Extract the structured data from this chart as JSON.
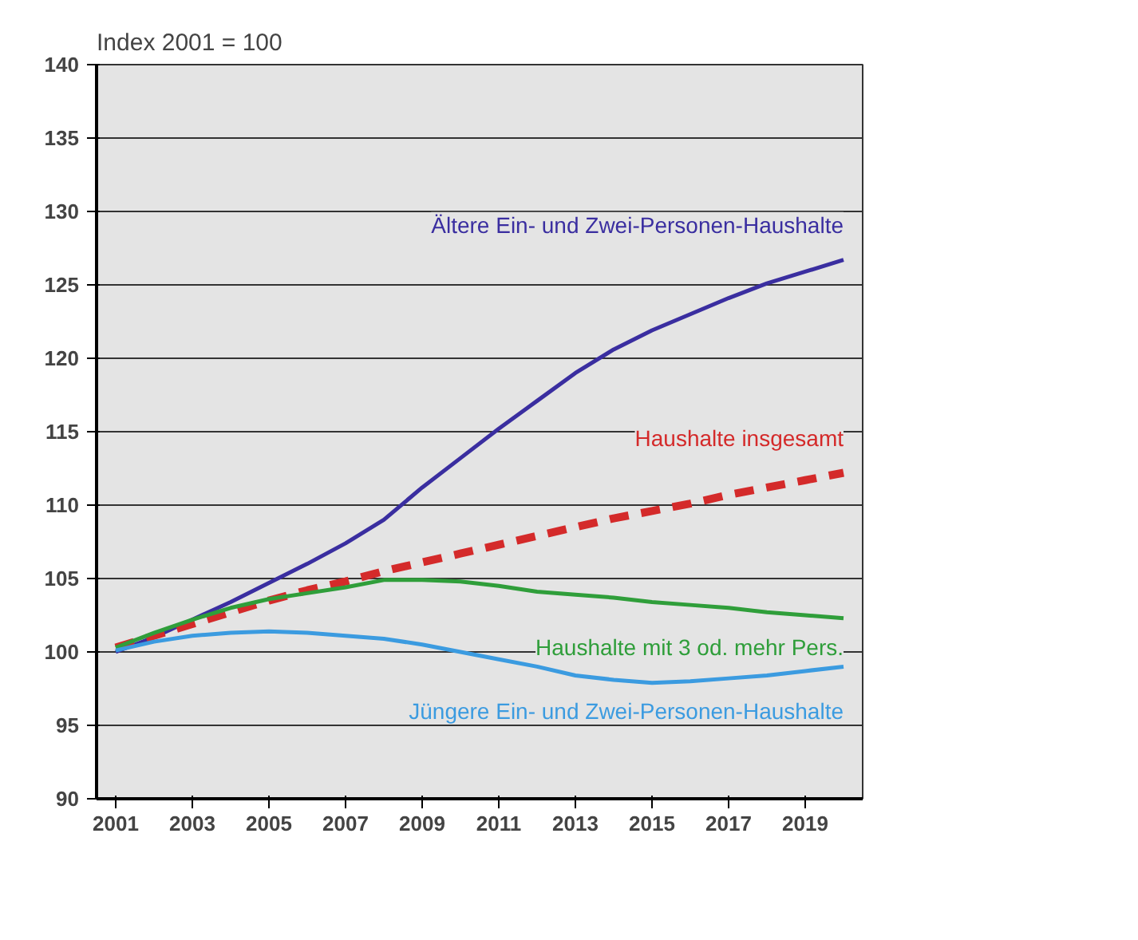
{
  "chart_data": {
    "type": "line",
    "title": "Index 2001 = 100",
    "x": [
      2001,
      2002,
      2003,
      2004,
      2005,
      2006,
      2007,
      2008,
      2009,
      2010,
      2011,
      2012,
      2013,
      2014,
      2015,
      2016,
      2017,
      2018,
      2019,
      2020
    ],
    "series": [
      {
        "name": "Ältere Ein- und Zwei-Personen-Haushalte",
        "color": "#3a2ea0",
        "values": [
          100,
          101,
          102.2,
          103.4,
          104.7,
          106,
          107.4,
          109,
          111.2,
          113.2,
          115.2,
          117.1,
          119,
          120.6,
          121.9,
          123,
          124.1,
          125.1,
          125.9,
          126.7
        ]
      },
      {
        "name": "Haushalte insgesamt",
        "color": "#d42a2a",
        "line_style": "dashed",
        "values": [
          100.3,
          101.1,
          101.9,
          102.7,
          103.5,
          104.2,
          104.8,
          105.5,
          106.1,
          106.7,
          107.3,
          107.9,
          108.5,
          109.1,
          109.6,
          110.1,
          110.7,
          111.2,
          111.7,
          112.2
        ]
      },
      {
        "name": "Haushalte mit 3 od. mehr Pers.",
        "color": "#2f9e3a",
        "values": [
          100.3,
          101.3,
          102.2,
          103,
          103.6,
          104,
          104.4,
          104.9,
          104.9,
          104.8,
          104.5,
          104.1,
          103.9,
          103.7,
          103.4,
          103.2,
          103,
          102.7,
          102.5,
          102.3
        ]
      },
      {
        "name": "Jüngere Ein- und Zwei-Personen-Haushalte",
        "color": "#3b9be0",
        "values": [
          100.1,
          100.7,
          101.1,
          101.3,
          101.4,
          101.3,
          101.1,
          100.9,
          100.5,
          100,
          99.5,
          99,
          98.4,
          98.1,
          97.9,
          98,
          98.2,
          98.4,
          98.7,
          99.0
        ]
      }
    ],
    "xlim": [
      2000.5,
      2020.5
    ],
    "xticks": [
      2001,
      2003,
      2005,
      2007,
      2009,
      2011,
      2013,
      2015,
      2017,
      2019
    ],
    "ylim": [
      90,
      140
    ],
    "yticks": [
      90,
      95,
      100,
      105,
      110,
      115,
      120,
      125,
      130,
      135,
      140
    ],
    "grid": "y",
    "legend": false,
    "line_style": "solid",
    "marker": "none"
  }
}
